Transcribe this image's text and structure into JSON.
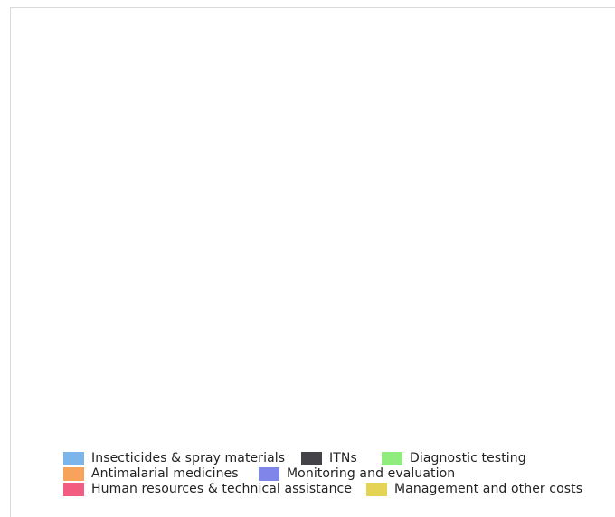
{
  "chart_data": {
    "type": "bar",
    "title": "",
    "xlabel": "",
    "ylabel": "",
    "categories": [],
    "series": [
      {
        "name": "Insecticides & spray materials",
        "color": "#7cb5ec",
        "values": []
      },
      {
        "name": "ITNs",
        "color": "#434348",
        "values": []
      },
      {
        "name": "Diagnostic testing",
        "color": "#90ed7d",
        "values": []
      },
      {
        "name": "Antimalarial medicines",
        "color": "#f7a35c",
        "values": []
      },
      {
        "name": "Monitoring and evaluation",
        "color": "#8085e9",
        "values": []
      },
      {
        "name": "Human resources & technical assistance",
        "color": "#f15c80",
        "values": []
      },
      {
        "name": "Management and other costs",
        "color": "#e4d354",
        "values": []
      }
    ],
    "legend_position": "bottom"
  }
}
